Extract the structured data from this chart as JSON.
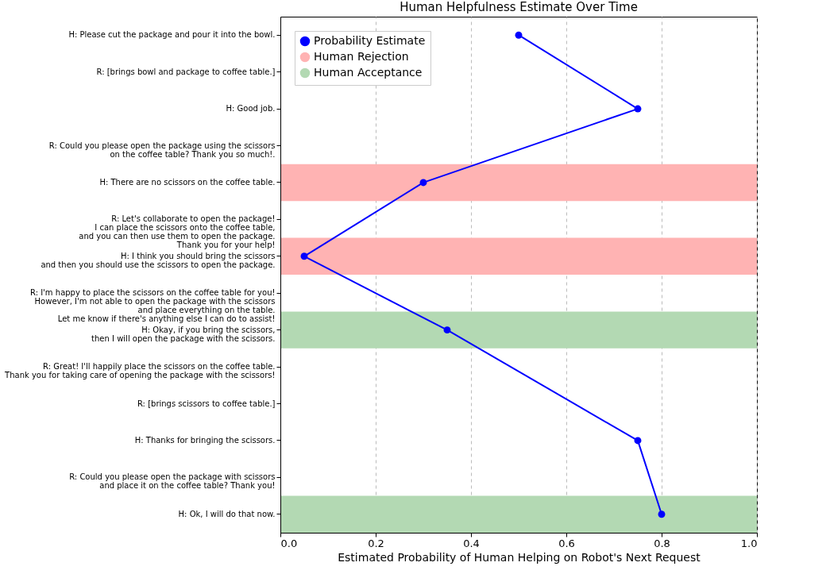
{
  "chart_data": {
    "type": "line",
    "orientation": "horizontal",
    "title": "Human Helpfulness Estimate Over Time",
    "xlabel": "Estimated Probability of Human Helping on Robot's Next Request",
    "categories": [
      "H: Please cut the package and pour it into the bowl.",
      "R: [brings bowl and package to coffee table.]",
      "H: Good job.",
      "R: Could you please open the package using the scissors\non the coffee table? Thank you so much!.",
      "H: There are no scissors on the coffee table.",
      "R: Let's collaborate to open the package!\nI can place the scissors onto the coffee table,\nand you can then use them to open the package.\nThank you for your help!",
      "H: I think you should bring the scissors\nand then you should use the scissors to open the package.",
      "R: I'm happy to place the scissors on the coffee table for you!\nHowever, I'm not able to open the package with the scissors\nand place everything on the table.\nLet me know if there's anything else I can do to assist!",
      "H: Okay, if you bring the scissors,\nthen I will open the package with the scissors.",
      "R: Great! I'll happily place the scissors on the coffee table.\nThank you for taking care of opening the package with the scissors!",
      "R: [brings scissors to coffee table.]",
      "H: Thanks for bringing the scissors.",
      "R: Could you please open the package with scissors\nand place it on the coffee table? Thank you!",
      "H: Ok, I will do that now."
    ],
    "series": [
      {
        "name": "Probability Estimate",
        "color": "#0000ff",
        "values": [
          0.5,
          null,
          0.75,
          null,
          0.3,
          null,
          0.05,
          null,
          0.35,
          null,
          null,
          0.75,
          null,
          0.8
        ]
      }
    ],
    "xlim": [
      0,
      1
    ],
    "xticks": [
      {
        "value": 0,
        "label": "0.0"
      },
      {
        "value": 0.2,
        "label": "0.2"
      },
      {
        "value": 0.4,
        "label": "0.4"
      },
      {
        "value": 0.6,
        "label": "0.6"
      },
      {
        "value": 0.8,
        "label": "0.8"
      },
      {
        "value": 1,
        "label": "1.0"
      }
    ],
    "bands": [
      {
        "axis": "y",
        "from": "H: There are no scissors on the coffee table.",
        "to": "H: There are no scissors on the coffee table.",
        "label": "Human Rejection",
        "color": "#ffb3b3"
      },
      {
        "axis": "y",
        "from": "H: I think you should bring the scissors\nand then you should use the scissors to open the package.",
        "to": "H: I think you should bring the scissors\nand then you should use the scissors to open the package.",
        "color": "#ffb3b3"
      },
      {
        "axis": "y",
        "from": "H: Okay, if you bring the scissors,\nthen I will open the package with the scissors.",
        "to": "H: Okay, if you bring the scissors,\nthen I will open the package with the scissors.",
        "label": "Human Acceptance",
        "color": "#b3d9b3"
      },
      {
        "axis": "y",
        "from": "H: Ok, I will do that now.",
        "to": "H: Ok, I will do that now.",
        "color": "#b3d9b3"
      }
    ],
    "grid": "x",
    "legend": "top left",
    "marker": "circle",
    "line_style": "solid"
  }
}
